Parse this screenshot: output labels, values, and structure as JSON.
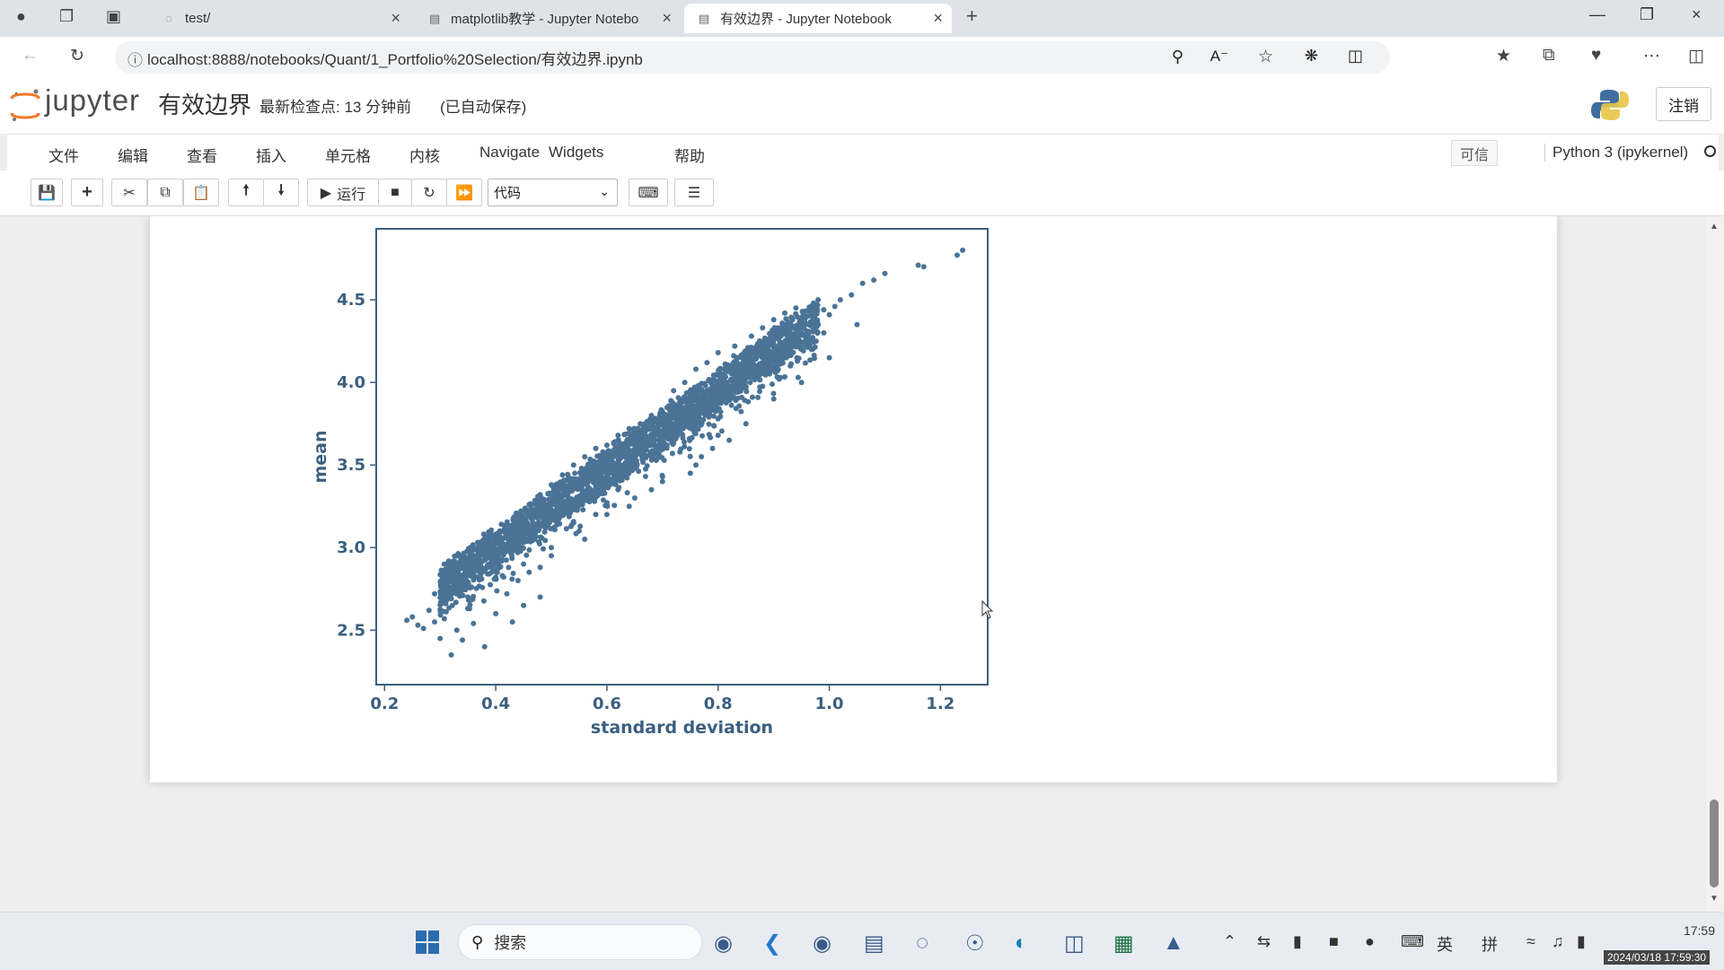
{
  "browser": {
    "tabs": [
      {
        "label": "test/",
        "active": false
      },
      {
        "label": "matplotlib教学 - Jupyter Notebo",
        "active": false
      },
      {
        "label": "有效边界 - Jupyter Notebook",
        "active": true
      }
    ],
    "url": "localhost:8888/notebooks/Quant/1_Portfolio%20Selection/有效边界.ipynb"
  },
  "jupyter": {
    "logo_text": "jupyter",
    "notebook_name": "有效边界",
    "checkpoint": "最新检查点: 13 分钟前",
    "autosave": "(已自动保存)",
    "logout_label": "注销",
    "menu": [
      "文件",
      "编辑",
      "查看",
      "插入",
      "单元格",
      "内核",
      "Navigate",
      "Widgets",
      "帮助"
    ],
    "trusted_label": "可信",
    "kernel_name": "Python 3 (ipykernel)",
    "toolbar": {
      "run_label": "运行",
      "cell_type": "代码"
    }
  },
  "chart_data": {
    "type": "scatter",
    "xlabel": "standard deviation",
    "ylabel": "mean",
    "xlim": [
      0.185,
      1.285
    ],
    "ylim": [
      2.17,
      4.93
    ],
    "xticks": [
      0.2,
      0.4,
      0.6,
      0.8,
      1.0,
      1.2
    ],
    "yticks": [
      2.5,
      3.0,
      3.5,
      4.0,
      4.5
    ],
    "marker_color": "#4a7396",
    "series": [
      {
        "points": [
          [
            0.24,
            2.56
          ],
          [
            0.25,
            2.58
          ],
          [
            0.26,
            2.53
          ],
          [
            0.27,
            2.51
          ],
          [
            0.28,
            2.62
          ],
          [
            0.29,
            2.55
          ],
          [
            0.3,
            2.45
          ],
          [
            0.31,
            2.66
          ],
          [
            0.32,
            2.35
          ],
          [
            0.33,
            2.5
          ],
          [
            0.34,
            2.44
          ],
          [
            0.36,
            2.54
          ],
          [
            0.38,
            2.4
          ],
          [
            0.4,
            2.6
          ],
          [
            0.43,
            2.55
          ],
          [
            0.45,
            2.65
          ],
          [
            0.48,
            2.7
          ],
          [
            0.29,
            2.72
          ],
          [
            0.31,
            2.8
          ],
          [
            0.32,
            2.69
          ],
          [
            0.33,
            2.86
          ],
          [
            0.34,
            2.76
          ],
          [
            0.35,
            2.9
          ],
          [
            0.36,
            2.82
          ],
          [
            0.37,
            2.95
          ],
          [
            0.38,
            2.87
          ],
          [
            0.39,
            3.0
          ],
          [
            0.4,
            2.93
          ],
          [
            0.41,
            3.06
          ],
          [
            0.42,
            2.98
          ],
          [
            0.43,
            3.11
          ],
          [
            0.44,
            3.03
          ],
          [
            0.45,
            3.16
          ],
          [
            0.46,
            3.08
          ],
          [
            0.47,
            3.2
          ],
          [
            0.48,
            3.13
          ],
          [
            0.49,
            3.26
          ],
          [
            0.5,
            3.18
          ],
          [
            0.51,
            3.31
          ],
          [
            0.52,
            3.23
          ],
          [
            0.53,
            3.36
          ],
          [
            0.54,
            3.28
          ],
          [
            0.55,
            3.41
          ],
          [
            0.56,
            3.33
          ],
          [
            0.57,
            3.46
          ],
          [
            0.58,
            3.38
          ],
          [
            0.59,
            3.51
          ],
          [
            0.6,
            3.43
          ],
          [
            0.61,
            3.56
          ],
          [
            0.62,
            3.48
          ],
          [
            0.63,
            3.61
          ],
          [
            0.64,
            3.53
          ],
          [
            0.65,
            3.66
          ],
          [
            0.66,
            3.58
          ],
          [
            0.67,
            3.71
          ],
          [
            0.68,
            3.63
          ],
          [
            0.69,
            3.76
          ],
          [
            0.7,
            3.68
          ],
          [
            0.71,
            3.8
          ],
          [
            0.72,
            3.74
          ],
          [
            0.73,
            3.86
          ],
          [
            0.74,
            3.79
          ],
          [
            0.75,
            3.9
          ],
          [
            0.76,
            3.84
          ],
          [
            0.77,
            3.95
          ],
          [
            0.78,
            3.88
          ],
          [
            0.79,
            4.0
          ],
          [
            0.8,
            3.93
          ],
          [
            0.81,
            4.05
          ],
          [
            0.82,
            3.98
          ],
          [
            0.83,
            4.1
          ],
          [
            0.84,
            4.03
          ],
          [
            0.85,
            4.14
          ],
          [
            0.86,
            4.08
          ],
          [
            0.87,
            4.2
          ],
          [
            0.88,
            4.12
          ],
          [
            0.89,
            4.25
          ],
          [
            0.9,
            4.17
          ],
          [
            0.91,
            4.3
          ],
          [
            0.92,
            4.22
          ],
          [
            0.93,
            4.33
          ],
          [
            0.94,
            4.28
          ],
          [
            0.95,
            4.38
          ],
          [
            0.96,
            4.31
          ],
          [
            0.97,
            4.4
          ],
          [
            0.98,
            4.35
          ],
          [
            0.99,
            4.44
          ],
          [
            1.0,
            4.41
          ],
          [
            1.01,
            4.46
          ],
          [
            1.02,
            4.5
          ],
          [
            1.04,
            4.53
          ],
          [
            1.06,
            4.6
          ],
          [
            1.08,
            4.62
          ],
          [
            1.1,
            4.66
          ],
          [
            1.17,
            4.7
          ],
          [
            1.16,
            4.71
          ],
          [
            1.23,
            4.77
          ],
          [
            1.24,
            4.8
          ],
          [
            1.05,
            4.35
          ],
          [
            1.0,
            4.15
          ],
          [
            0.95,
            4.0
          ],
          [
            0.9,
            3.9
          ],
          [
            0.85,
            3.75
          ],
          [
            0.8,
            3.68
          ],
          [
            0.77,
            3.55
          ],
          [
            0.75,
            3.45
          ],
          [
            0.7,
            3.43
          ],
          [
            0.65,
            3.3
          ],
          [
            0.6,
            3.2
          ],
          [
            0.55,
            3.1
          ],
          [
            0.5,
            3.0
          ],
          [
            0.45,
            2.9
          ],
          [
            0.4,
            2.82
          ],
          [
            0.35,
            2.7
          ],
          [
            0.8,
            3.78
          ],
          [
            0.82,
            3.65
          ],
          [
            0.79,
            3.6
          ],
          [
            0.76,
            3.5
          ],
          [
            0.7,
            3.4
          ],
          [
            0.68,
            3.35
          ],
          [
            0.64,
            3.25
          ],
          [
            0.62,
            3.35
          ],
          [
            0.58,
            3.2
          ],
          [
            0.56,
            3.05
          ],
          [
            0.54,
            3.15
          ],
          [
            0.5,
            2.95
          ],
          [
            0.48,
            2.88
          ],
          [
            0.46,
            2.85
          ],
          [
            0.44,
            2.8
          ],
          [
            0.42,
            2.72
          ],
          [
            0.68,
            3.8
          ],
          [
            0.66,
            3.75
          ],
          [
            0.64,
            3.72
          ],
          [
            0.62,
            3.68
          ],
          [
            0.6,
            3.62
          ],
          [
            0.58,
            3.6
          ],
          [
            0.56,
            3.55
          ],
          [
            0.54,
            3.5
          ],
          [
            0.52,
            3.44
          ],
          [
            0.5,
            3.38
          ],
          [
            0.48,
            3.32
          ],
          [
            0.46,
            3.26
          ],
          [
            0.44,
            3.2
          ],
          [
            0.42,
            3.14
          ],
          [
            0.4,
            3.08
          ],
          [
            0.38,
            3.02
          ],
          [
            0.72,
            3.95
          ],
          [
            0.74,
            4.0
          ],
          [
            0.76,
            4.08
          ],
          [
            0.78,
            4.12
          ],
          [
            0.8,
            4.18
          ],
          [
            0.83,
            4.22
          ],
          [
            0.86,
            4.28
          ],
          [
            0.88,
            4.33
          ],
          [
            0.9,
            4.38
          ],
          [
            0.92,
            4.42
          ],
          [
            0.94,
            4.45
          ],
          [
            0.97,
            4.47
          ],
          [
            0.99,
            4.3
          ],
          [
            0.97,
            4.2
          ],
          [
            0.93,
            4.1
          ],
          [
            0.91,
            4.02
          ]
        ]
      }
    ]
  },
  "taskbar": {
    "search_label": "搜索",
    "ime_lang": "英",
    "ime_mode": "拼",
    "clock_time": "17:59",
    "timestamp_overlay": "2024/03/18 17:59:30"
  }
}
